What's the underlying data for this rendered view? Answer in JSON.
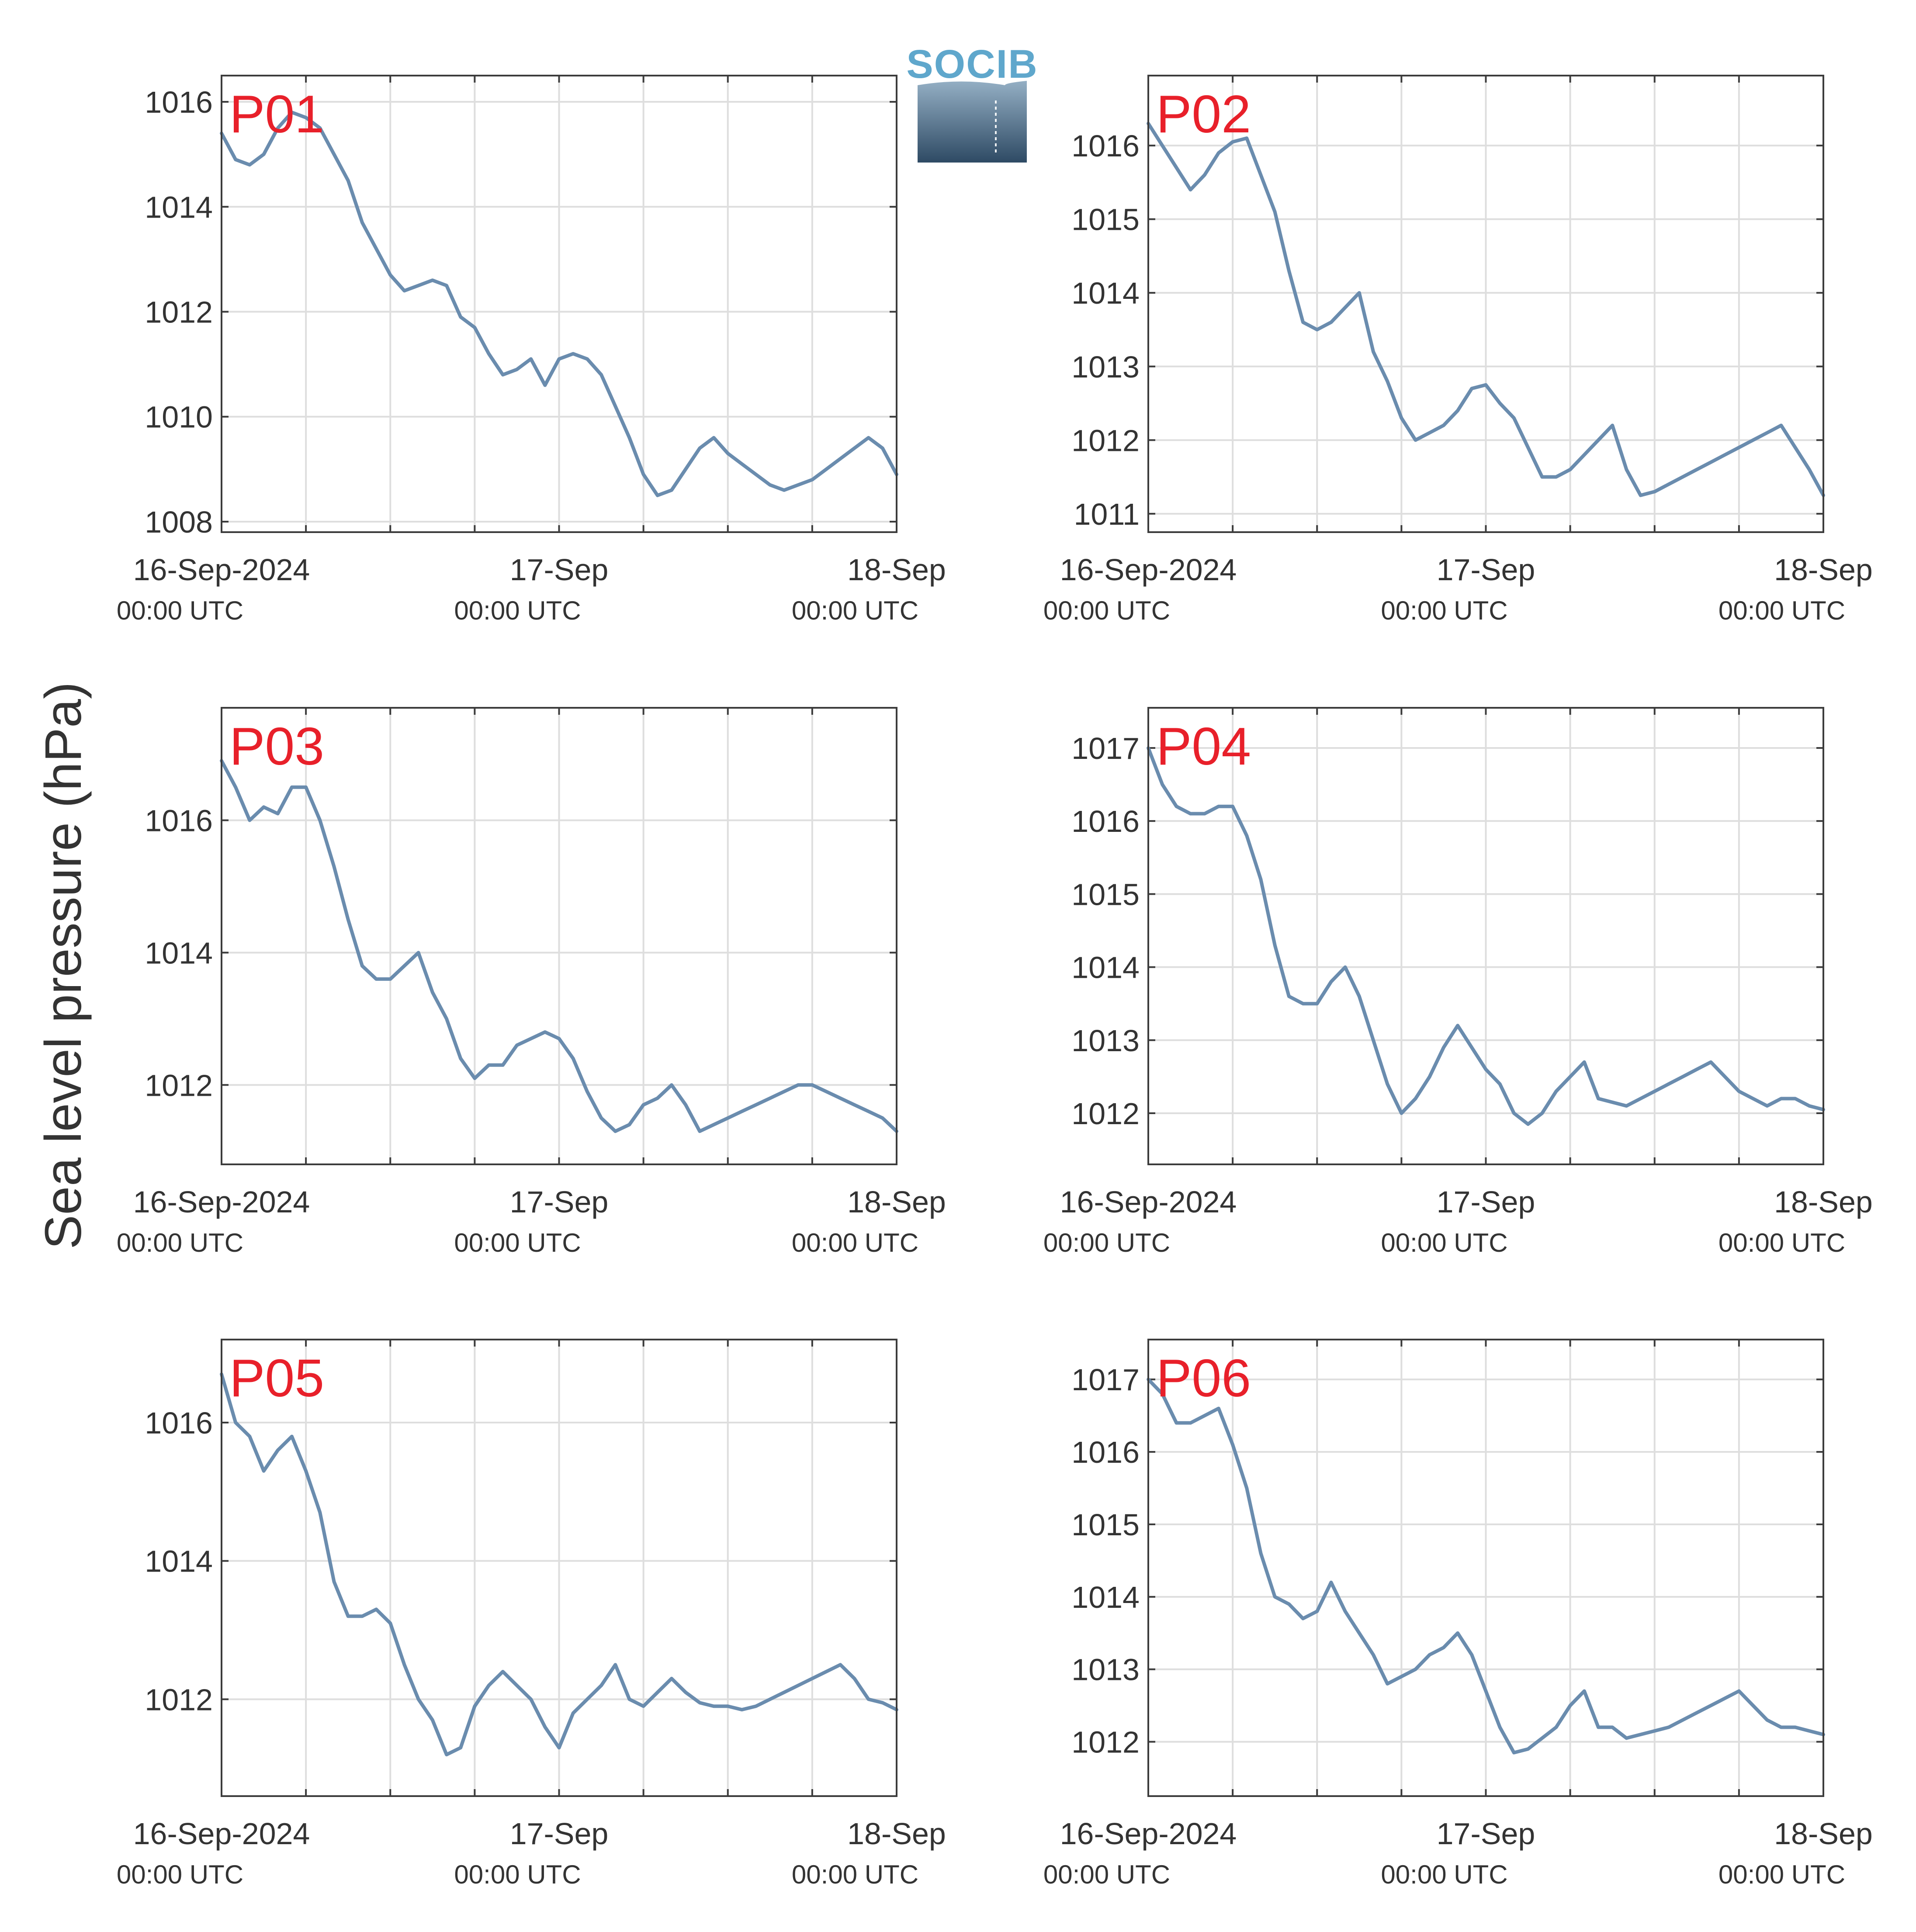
{
  "figure": {
    "ylabel": "Sea level pressure (hPa)",
    "logo_text": "SOCIB",
    "colors": {
      "line": "#6a8cae",
      "panel_label": "#e8202a",
      "axis": "#3c3c3c",
      "grid": "#dedede",
      "text": "#333333",
      "logo_top": "#5fa7cc",
      "logo_bottom": "#2e4a64"
    }
  },
  "chart_data": [
    {
      "type": "line",
      "panel_label": "P01",
      "x_ticks": [
        {
          "label": "16-Sep-2024",
          "sub": "00:00 UTC"
        },
        {
          "label": "17-Sep",
          "sub": "00:00 UTC"
        },
        {
          "label": "18-Sep",
          "sub": "00:00 UTC"
        }
      ],
      "xlim": [
        0,
        48
      ],
      "ylim": [
        1007.8,
        1016.5
      ],
      "yticks": [
        1008,
        1010,
        1012,
        1014,
        1016
      ],
      "grid": true,
      "x": [
        0,
        1,
        2,
        3,
        4,
        5,
        6,
        7,
        8,
        9,
        10,
        11,
        12,
        13,
        14,
        15,
        16,
        17,
        18,
        19,
        20,
        21,
        22,
        23,
        24,
        25,
        26,
        27,
        28,
        29,
        30,
        31,
        32,
        33,
        34,
        35,
        36,
        37,
        38,
        39,
        40,
        41,
        42,
        43,
        44,
        45,
        46,
        47,
        48
      ],
      "values": [
        1015.4,
        1014.9,
        1014.8,
        1015.0,
        1015.5,
        1015.8,
        1015.7,
        1015.5,
        1015.0,
        1014.5,
        1013.7,
        1013.2,
        1012.7,
        1012.4,
        1012.5,
        1012.6,
        1012.5,
        1011.9,
        1011.7,
        1011.2,
        1010.8,
        1010.9,
        1011.1,
        1010.6,
        1011.1,
        1011.2,
        1011.1,
        1010.8,
        1010.2,
        1009.6,
        1008.9,
        1008.5,
        1008.6,
        1009.0,
        1009.4,
        1009.6,
        1009.3,
        1009.1,
        1008.9,
        1008.7,
        1008.6,
        1008.7,
        1008.8,
        1009.0,
        1009.2,
        1009.4,
        1009.6,
        1009.4,
        1008.9
      ]
    },
    {
      "type": "line",
      "panel_label": "P02",
      "x_ticks": [
        {
          "label": "16-Sep-2024",
          "sub": "00:00 UTC"
        },
        {
          "label": "17-Sep",
          "sub": "00:00 UTC"
        },
        {
          "label": "18-Sep",
          "sub": "00:00 UTC"
        }
      ],
      "xlim": [
        0,
        48
      ],
      "ylim": [
        1010.75,
        1016.95
      ],
      "yticks": [
        1011,
        1012,
        1013,
        1014,
        1015,
        1016
      ],
      "grid": true,
      "x": [
        0,
        2,
        3,
        4,
        5,
        6,
        7,
        8,
        9,
        10,
        11,
        12,
        13,
        14,
        15,
        16,
        17,
        18,
        19,
        20,
        21,
        22,
        23,
        24,
        25,
        26,
        27,
        28,
        29,
        30,
        31,
        32,
        33,
        34,
        35,
        36,
        37,
        38,
        39,
        40,
        41,
        42,
        43,
        44,
        45,
        46,
        47,
        48
      ],
      "values": [
        1016.3,
        1015.7,
        1015.4,
        1015.6,
        1015.9,
        1016.05,
        1016.1,
        1015.6,
        1015.1,
        1014.3,
        1013.6,
        1013.5,
        1013.6,
        1013.8,
        1014.0,
        1013.2,
        1012.8,
        1012.3,
        1012.0,
        1012.1,
        1012.2,
        1012.4,
        1012.7,
        1012.75,
        1012.5,
        1012.3,
        1011.9,
        1011.5,
        1011.5,
        1011.6,
        1011.8,
        1012.0,
        1012.2,
        1011.6,
        1011.25,
        1011.3,
        1011.4,
        1011.5,
        1011.6,
        1011.7,
        1011.8,
        1011.9,
        1012.0,
        1012.1,
        1012.2,
        1011.9,
        1011.6,
        1011.25
      ]
    },
    {
      "type": "line",
      "panel_label": "P03",
      "x_ticks": [
        {
          "label": "16-Sep-2024",
          "sub": "00:00 UTC"
        },
        {
          "label": "17-Sep",
          "sub": "00:00 UTC"
        },
        {
          "label": "18-Sep",
          "sub": "00:00 UTC"
        }
      ],
      "xlim": [
        0,
        48
      ],
      "ylim": [
        1010.8,
        1017.7
      ],
      "yticks": [
        1012,
        1014,
        1016
      ],
      "grid": true,
      "x": [
        0,
        1,
        2,
        3,
        4,
        5,
        6,
        7,
        8,
        9,
        10,
        11,
        12,
        13,
        14,
        15,
        16,
        17,
        18,
        19,
        20,
        21,
        22,
        23,
        24,
        25,
        26,
        27,
        28,
        29,
        30,
        31,
        32,
        33,
        34,
        35,
        36,
        37,
        38,
        39,
        40,
        41,
        42,
        43,
        44,
        45,
        46,
        47,
        48
      ],
      "values": [
        1016.9,
        1016.5,
        1016.0,
        1016.2,
        1016.1,
        1016.5,
        1016.5,
        1016.0,
        1015.3,
        1014.5,
        1013.8,
        1013.6,
        1013.6,
        1013.8,
        1014.0,
        1013.4,
        1013.0,
        1012.4,
        1012.1,
        1012.3,
        1012.3,
        1012.6,
        1012.7,
        1012.8,
        1012.7,
        1012.4,
        1011.9,
        1011.5,
        1011.3,
        1011.4,
        1011.7,
        1011.8,
        1012.0,
        1011.7,
        1011.3,
        1011.4,
        1011.5,
        1011.6,
        1011.7,
        1011.8,
        1011.9,
        1012.0,
        1012.0,
        1011.9,
        1011.8,
        1011.7,
        1011.6,
        1011.5,
        1011.3
      ]
    },
    {
      "type": "line",
      "panel_label": "P04",
      "x_ticks": [
        {
          "label": "16-Sep-2024",
          "sub": "00:00 UTC"
        },
        {
          "label": "17-Sep",
          "sub": "00:00 UTC"
        },
        {
          "label": "18-Sep",
          "sub": "00:00 UTC"
        }
      ],
      "xlim": [
        0,
        48
      ],
      "ylim": [
        1011.3,
        1017.55
      ],
      "yticks": [
        1012,
        1013,
        1014,
        1015,
        1016,
        1017
      ],
      "grid": true,
      "x": [
        0,
        1,
        2,
        3,
        4,
        5,
        6,
        7,
        8,
        9,
        10,
        11,
        12,
        13,
        14,
        15,
        16,
        17,
        18,
        19,
        20,
        21,
        22,
        23,
        24,
        25,
        26,
        27,
        28,
        29,
        30,
        31,
        32,
        33,
        34,
        35,
        36,
        37,
        38,
        39,
        40,
        41,
        42,
        43,
        44,
        45,
        46,
        47,
        48
      ],
      "values": [
        1017.0,
        1016.5,
        1016.2,
        1016.1,
        1016.1,
        1016.2,
        1016.2,
        1015.8,
        1015.2,
        1014.3,
        1013.6,
        1013.5,
        1013.5,
        1013.8,
        1014.0,
        1013.6,
        1013.0,
        1012.4,
        1012.0,
        1012.2,
        1012.5,
        1012.9,
        1013.2,
        1012.9,
        1012.6,
        1012.4,
        1012.0,
        1011.85,
        1012.0,
        1012.3,
        1012.5,
        1012.7,
        1012.2,
        1012.15,
        1012.1,
        1012.2,
        1012.3,
        1012.4,
        1012.5,
        1012.6,
        1012.7,
        1012.5,
        1012.3,
        1012.2,
        1012.1,
        1012.2,
        1012.2,
        1012.1,
        1012.05
      ]
    },
    {
      "type": "line",
      "panel_label": "P05",
      "x_ticks": [
        {
          "label": "16-Sep-2024",
          "sub": "00:00 UTC"
        },
        {
          "label": "17-Sep",
          "sub": "00:00 UTC"
        },
        {
          "label": "18-Sep",
          "sub": "00:00 UTC"
        }
      ],
      "xlim": [
        0,
        48
      ],
      "ylim": [
        1010.6,
        1017.2
      ],
      "yticks": [
        1012,
        1014,
        1016
      ],
      "grid": true,
      "x": [
        0,
        1,
        2,
        3,
        4,
        5,
        6,
        7,
        8,
        9,
        10,
        11,
        12,
        13,
        14,
        15,
        16,
        17,
        18,
        19,
        20,
        21,
        22,
        23,
        24,
        25,
        26,
        27,
        28,
        29,
        30,
        31,
        32,
        33,
        34,
        35,
        36,
        37,
        38,
        39,
        40,
        41,
        42,
        43,
        44,
        45,
        46,
        47,
        48
      ],
      "values": [
        1016.7,
        1016.0,
        1015.8,
        1015.3,
        1015.6,
        1015.8,
        1015.3,
        1014.7,
        1013.7,
        1013.2,
        1013.2,
        1013.3,
        1013.1,
        1012.5,
        1012.0,
        1011.7,
        1011.2,
        1011.3,
        1011.9,
        1012.2,
        1012.4,
        1012.2,
        1012.0,
        1011.6,
        1011.3,
        1011.8,
        1012.0,
        1012.2,
        1012.5,
        1012.0,
        1011.9,
        1012.1,
        1012.3,
        1012.1,
        1011.95,
        1011.9,
        1011.9,
        1011.85,
        1011.9,
        1012.0,
        1012.1,
        1012.2,
        1012.3,
        1012.4,
        1012.5,
        1012.3,
        1012.0,
        1011.95,
        1011.85
      ]
    },
    {
      "type": "line",
      "panel_label": "P06",
      "x_ticks": [
        {
          "label": "16-Sep-2024",
          "sub": "00:00 UTC"
        },
        {
          "label": "17-Sep",
          "sub": "00:00 UTC"
        },
        {
          "label": "18-Sep",
          "sub": "00:00 UTC"
        }
      ],
      "xlim": [
        0,
        48
      ],
      "ylim": [
        1011.25,
        1017.55
      ],
      "yticks": [
        1012,
        1013,
        1014,
        1015,
        1016,
        1017
      ],
      "grid": true,
      "x": [
        0,
        1,
        2,
        3,
        4,
        5,
        6,
        7,
        8,
        9,
        10,
        11,
        12,
        13,
        14,
        15,
        16,
        17,
        18,
        19,
        20,
        21,
        22,
        23,
        24,
        25,
        26,
        27,
        28,
        29,
        30,
        31,
        32,
        33,
        34,
        35,
        36,
        37,
        38,
        39,
        40,
        41,
        42,
        43,
        44,
        45,
        46,
        47,
        48
      ],
      "values": [
        1017.0,
        1016.8,
        1016.4,
        1016.4,
        1016.5,
        1016.6,
        1016.1,
        1015.5,
        1014.6,
        1014.0,
        1013.9,
        1013.7,
        1013.8,
        1014.2,
        1013.8,
        1013.5,
        1013.2,
        1012.8,
        1012.9,
        1013.0,
        1013.2,
        1013.3,
        1013.5,
        1013.2,
        1012.7,
        1012.2,
        1011.85,
        1011.9,
        1012.05,
        1012.2,
        1012.5,
        1012.7,
        1012.2,
        1012.2,
        1012.05,
        1012.1,
        1012.15,
        1012.2,
        1012.3,
        1012.4,
        1012.5,
        1012.6,
        1012.7,
        1012.5,
        1012.3,
        1012.2,
        1012.2,
        1012.15,
        1012.1
      ]
    }
  ]
}
